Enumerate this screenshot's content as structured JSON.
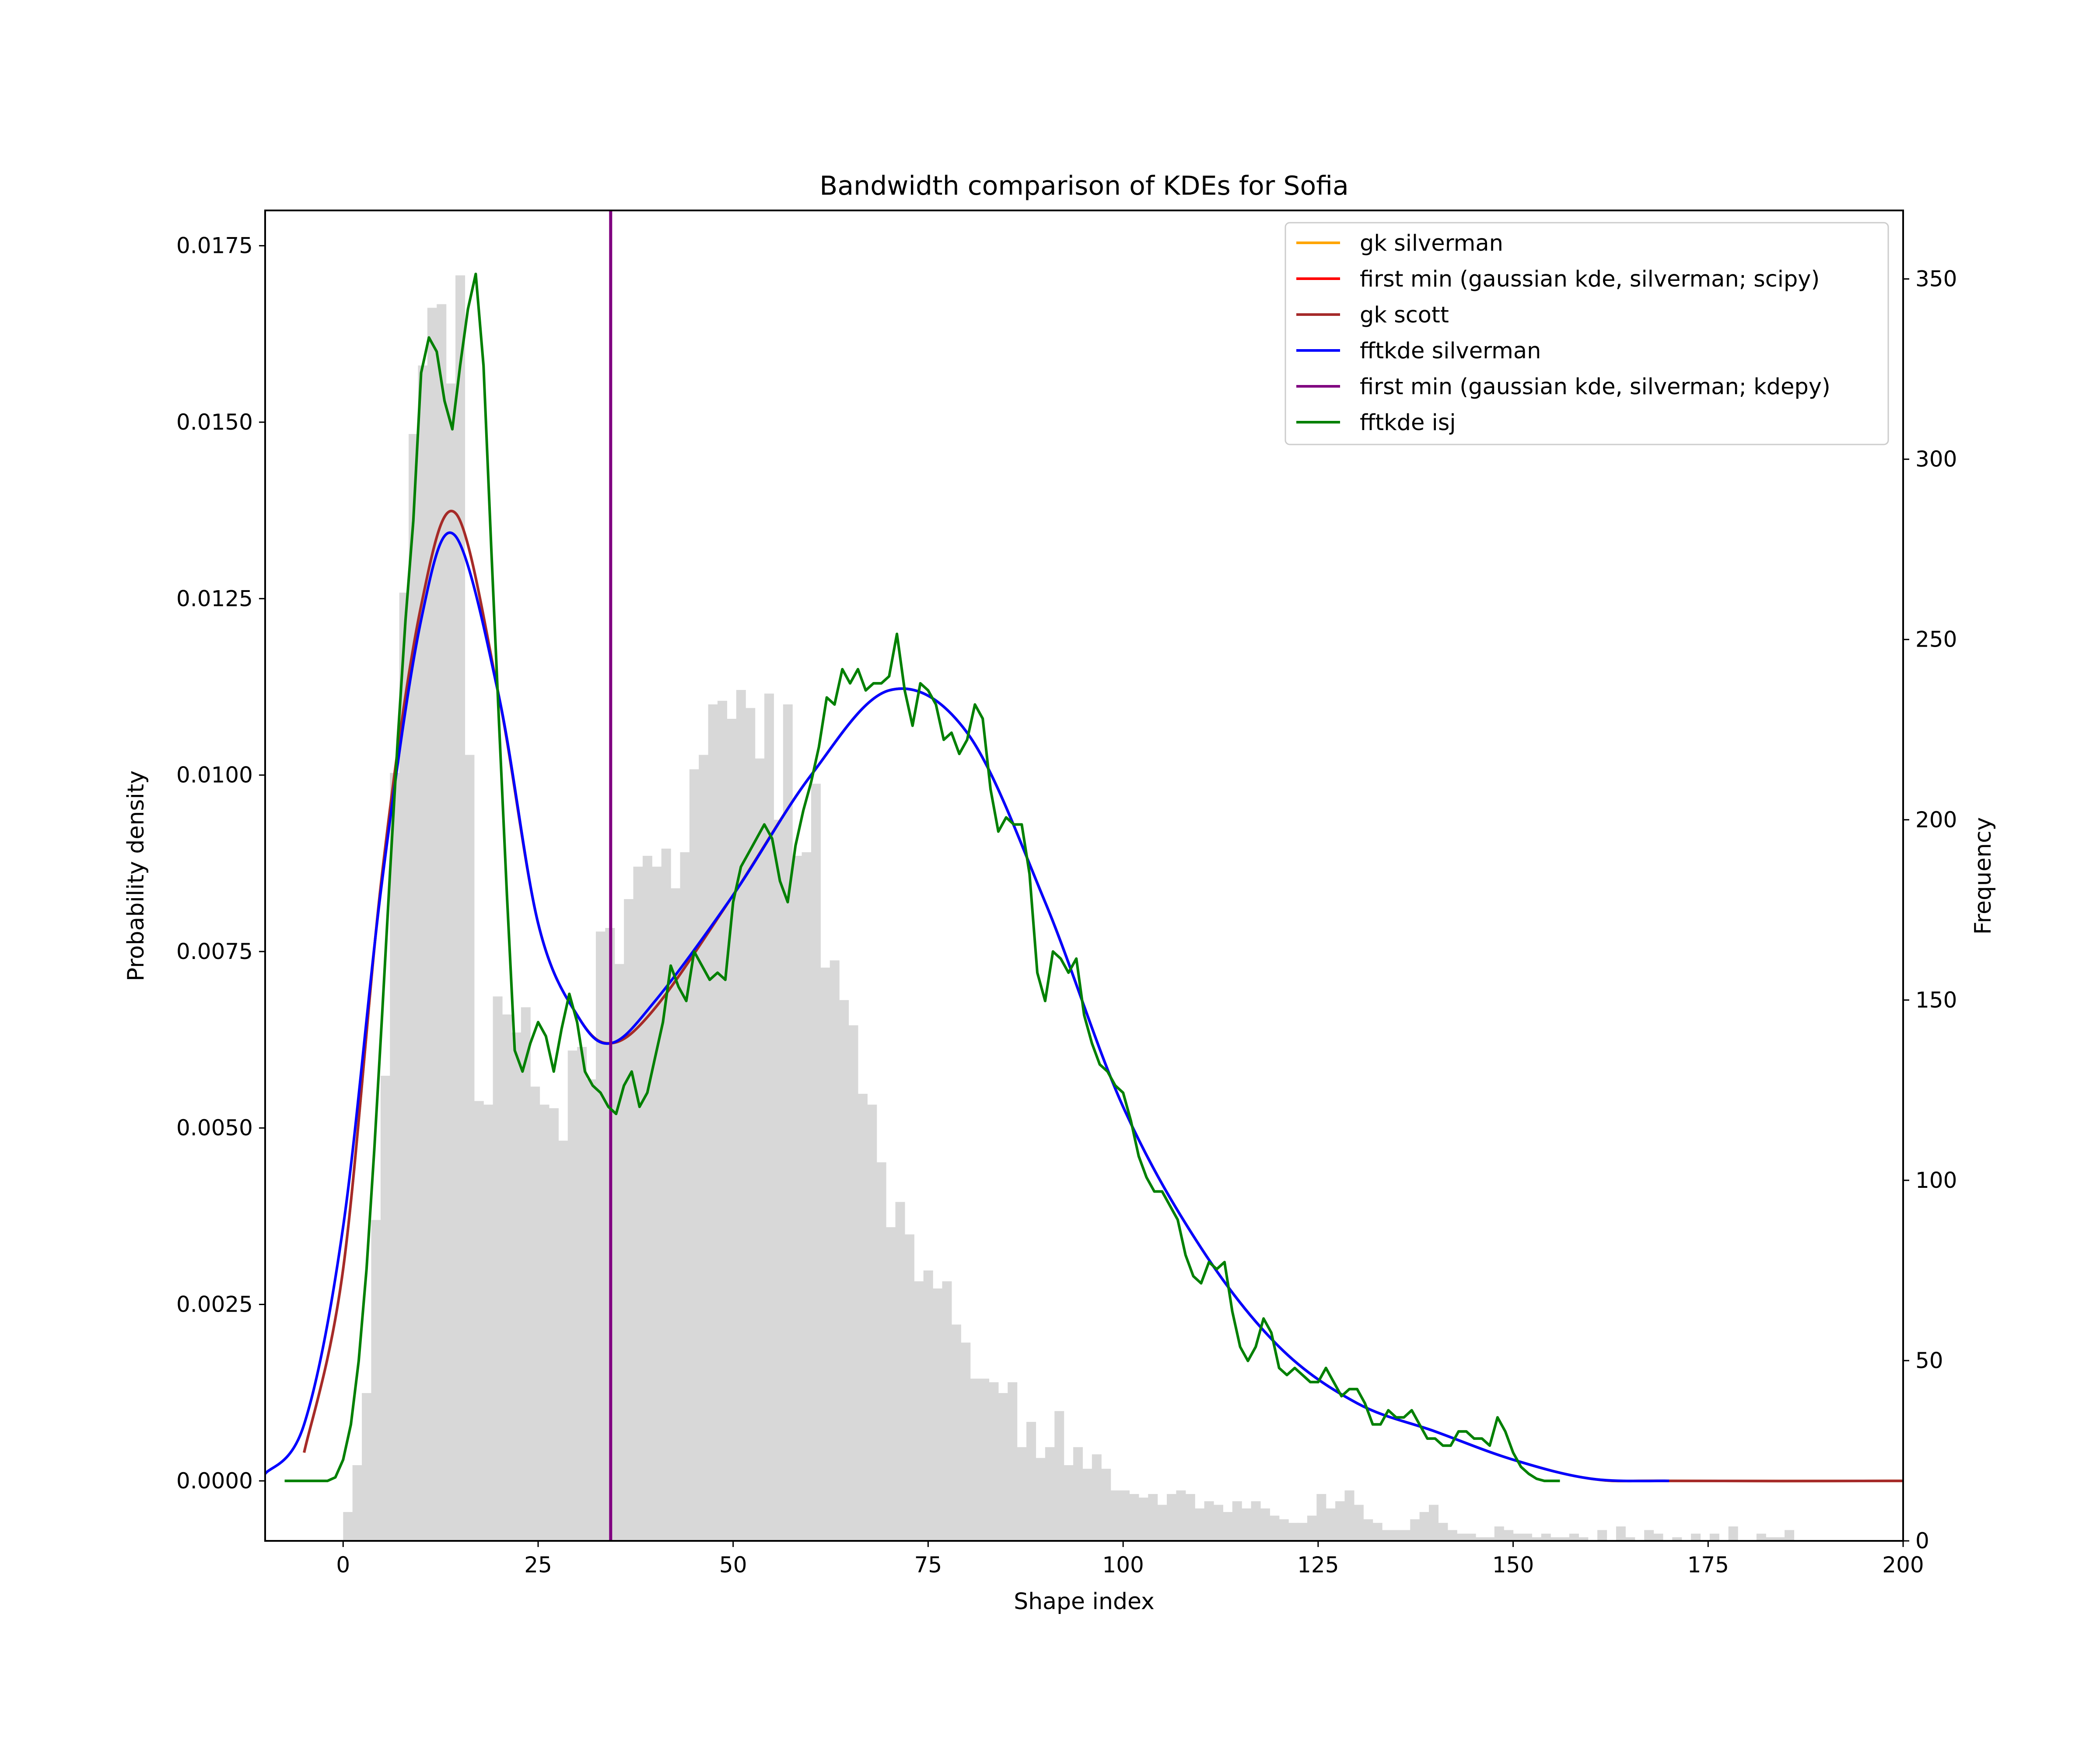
{
  "chart_data": {
    "type": "histogram+line",
    "title": "Bandwidth comparison of KDEs for Sofia",
    "xlabel": "Shape index",
    "ylabel_left": "Probability density",
    "ylabel_right": "Frequency",
    "xlim": [
      -10,
      200
    ],
    "ylim_left": [
      -0.00085,
      0.018
    ],
    "ylim_right": [
      0,
      369
    ],
    "x_ticks": [
      0,
      25,
      50,
      75,
      100,
      125,
      150,
      175,
      200
    ],
    "y_ticks_left": [
      "0.0000",
      "0.0025",
      "0.0050",
      "0.0075",
      "0.0100",
      "0.0125",
      "0.0150",
      "0.0175"
    ],
    "y_ticks_right": [
      0,
      50,
      100,
      150,
      200,
      250,
      300,
      350
    ],
    "grid": false,
    "legend_position": "upper right",
    "histogram": {
      "bin_start": 0,
      "bin_width": 1.2,
      "color": "#d8d8d8",
      "counts": [
        8,
        21,
        41,
        89,
        129,
        213,
        263,
        307,
        326,
        342,
        343,
        321,
        351,
        218,
        122,
        121,
        151,
        146,
        141,
        148,
        126,
        121,
        120,
        111,
        136,
        137,
        128,
        169,
        170,
        160,
        178,
        187,
        190,
        187,
        192,
        181,
        191,
        214,
        218,
        232,
        233,
        228,
        236,
        231,
        217,
        235,
        200,
        232,
        190,
        191,
        210,
        159,
        161,
        150,
        143,
        124,
        121,
        105,
        87,
        94,
        85,
        72,
        75,
        70,
        72,
        60,
        55,
        45,
        45,
        44,
        41,
        44,
        26,
        33,
        23,
        26,
        36,
        21,
        26,
        20,
        24,
        20,
        14,
        14,
        13,
        12,
        13,
        10,
        13,
        14,
        13,
        9,
        11,
        10,
        8,
        11,
        9,
        11,
        9,
        7,
        6,
        5,
        5,
        7,
        13,
        9,
        11,
        14,
        10,
        6,
        5,
        3,
        3,
        3,
        6,
        8,
        10,
        5,
        3,
        2,
        2,
        1,
        1,
        4,
        3,
        2,
        2,
        1,
        2,
        1,
        1,
        2,
        1,
        0,
        3,
        0,
        4,
        1,
        0,
        3,
        2,
        0,
        1,
        0,
        2,
        0,
        2,
        0,
        4,
        0,
        0,
        2,
        1,
        1,
        3
      ]
    },
    "series": [
      {
        "name": "gk silverman",
        "color": "#ffa500",
        "x": [
          -5,
          0,
          5,
          10,
          14.5,
          20,
          25,
          30,
          34.3,
          40,
          50,
          60,
          70,
          80,
          90,
          100,
          110,
          120,
          130,
          140,
          150,
          160,
          170,
          200
        ],
        "y": [
          0.0004,
          0.003,
          0.0086,
          0.0124,
          0.0137,
          0.0111,
          0.0079,
          0.0066,
          0.0062,
          0.0067,
          0.0083,
          0.01,
          0.0112,
          0.0106,
          0.0082,
          0.0053,
          0.0033,
          0.0019,
          0.0011,
          0.0007,
          0.0003,
          3e-05,
          0.0,
          0.0
        ]
      },
      {
        "name": "first min (gaussian kde, silverman; scipy)",
        "color": "#ff0000",
        "x": [],
        "y": []
      },
      {
        "name": "gk scott",
        "color": "#a52a2a",
        "x": [
          -5,
          0,
          5,
          10,
          14.5,
          20,
          25,
          30,
          34.3,
          40,
          50,
          60,
          70,
          80,
          90,
          100,
          110,
          120,
          130,
          140,
          150,
          160,
          170,
          200
        ],
        "y": [
          0.0004,
          0.003,
          0.0086,
          0.0124,
          0.0137,
          0.0111,
          0.0079,
          0.0066,
          0.0062,
          0.0067,
          0.0083,
          0.01,
          0.0112,
          0.0106,
          0.0082,
          0.0053,
          0.0033,
          0.0019,
          0.0011,
          0.0007,
          0.0003,
          3e-05,
          0.0,
          0.0
        ]
      },
      {
        "name": "fftkde silverman",
        "color": "#0000ff",
        "x": [
          -10,
          -5,
          0,
          5,
          10,
          14.3,
          20,
          25,
          30,
          34.3,
          40,
          50,
          60,
          70,
          80,
          90,
          100,
          110,
          120,
          130,
          140,
          150,
          160,
          170
        ],
        "y": [
          0.0001,
          0.0008,
          0.0036,
          0.0085,
          0.0122,
          0.0134,
          0.0111,
          0.0079,
          0.0066,
          0.0062,
          0.0068,
          0.0083,
          0.01,
          0.0112,
          0.0106,
          0.0082,
          0.0053,
          0.0033,
          0.0019,
          0.0011,
          0.0007,
          0.0003,
          3e-05,
          0.0
        ]
      },
      {
        "name": "first min (gaussian kde, silverman; kdepy)",
        "color": "#800080",
        "vline_x": 34.3
      },
      {
        "name": "fftkde isj",
        "color": "#008000",
        "x": [
          -7.5,
          -2,
          -1,
          0,
          1,
          2,
          3,
          4,
          5,
          6,
          7,
          8,
          9,
          10,
          11,
          12,
          13,
          14,
          15,
          16,
          17,
          18,
          19,
          20,
          21,
          22,
          23,
          24,
          25,
          26,
          27,
          28,
          29,
          30,
          31,
          32,
          33,
          34,
          35,
          36,
          37,
          38,
          39,
          40,
          41,
          42,
          43,
          44,
          45,
          46,
          47,
          48,
          49,
          50,
          51,
          52,
          53,
          54,
          55,
          56,
          57,
          58,
          59,
          60,
          61,
          62,
          63,
          64,
          65,
          66,
          67,
          68,
          69,
          70,
          71,
          72,
          73,
          74,
          75,
          76,
          77,
          78,
          79,
          80,
          81,
          82,
          83,
          84,
          85,
          86,
          87,
          88,
          89,
          90,
          91,
          92,
          93,
          94,
          95,
          96,
          97,
          98,
          99,
          100,
          101,
          102,
          103,
          104,
          105,
          106,
          107,
          108,
          109,
          110,
          111,
          112,
          113,
          114,
          115,
          116,
          117,
          118,
          119,
          120,
          121,
          122,
          123,
          124,
          125,
          126,
          127,
          128,
          129,
          130,
          131,
          132,
          133,
          134,
          135,
          136,
          137,
          138,
          139,
          140,
          141,
          142,
          143,
          144,
          145,
          146,
          147,
          148,
          149,
          150,
          151,
          152,
          153,
          154,
          155,
          156,
          157.5
        ],
        "y": [
          0.0,
          0.0,
          5e-05,
          0.0003,
          0.0008,
          0.0017,
          0.003,
          0.0047,
          0.0066,
          0.0086,
          0.0105,
          0.0122,
          0.0136,
          0.0157,
          0.0162,
          0.016,
          0.0153,
          0.0149,
          0.0158,
          0.0166,
          0.0171,
          0.0158,
          0.0132,
          0.0107,
          0.0083,
          0.0061,
          0.0058,
          0.0062,
          0.0065,
          0.0063,
          0.0058,
          0.0064,
          0.0069,
          0.0065,
          0.0058,
          0.0056,
          0.0055,
          0.0053,
          0.0052,
          0.0056,
          0.0058,
          0.0053,
          0.0055,
          0.006,
          0.0065,
          0.0073,
          0.007,
          0.0068,
          0.0075,
          0.0073,
          0.0071,
          0.0072,
          0.0071,
          0.0082,
          0.0087,
          0.0089,
          0.0091,
          0.0093,
          0.0091,
          0.0085,
          0.0082,
          0.009,
          0.0095,
          0.0099,
          0.0104,
          0.0111,
          0.011,
          0.0115,
          0.0113,
          0.0115,
          0.0112,
          0.0113,
          0.0113,
          0.0114,
          0.012,
          0.0112,
          0.0107,
          0.0113,
          0.0112,
          0.011,
          0.0105,
          0.0106,
          0.0103,
          0.0105,
          0.011,
          0.0108,
          0.0098,
          0.0092,
          0.0094,
          0.0093,
          0.0093,
          0.0086,
          0.0072,
          0.0068,
          0.0075,
          0.0074,
          0.0072,
          0.0074,
          0.0066,
          0.0062,
          0.0059,
          0.0058,
          0.0056,
          0.0055,
          0.0051,
          0.0046,
          0.0043,
          0.0041,
          0.0041,
          0.0039,
          0.0037,
          0.0032,
          0.0029,
          0.0028,
          0.0031,
          0.003,
          0.0031,
          0.0024,
          0.0019,
          0.0017,
          0.0019,
          0.0023,
          0.0021,
          0.0016,
          0.0015,
          0.0016,
          0.0015,
          0.0014,
          0.0014,
          0.0016,
          0.0014,
          0.0012,
          0.0013,
          0.0013,
          0.0011,
          0.0008,
          0.0008,
          0.001,
          0.0009,
          0.0009,
          0.001,
          0.0008,
          0.0006,
          0.0006,
          0.0005,
          0.0005,
          0.0007,
          0.0007,
          0.0006,
          0.0006,
          0.0005,
          0.0009,
          0.0007,
          0.0004,
          0.0002,
          0.0001,
          3e-05,
          0.0,
          0.0,
          0.0
        ]
      }
    ]
  }
}
